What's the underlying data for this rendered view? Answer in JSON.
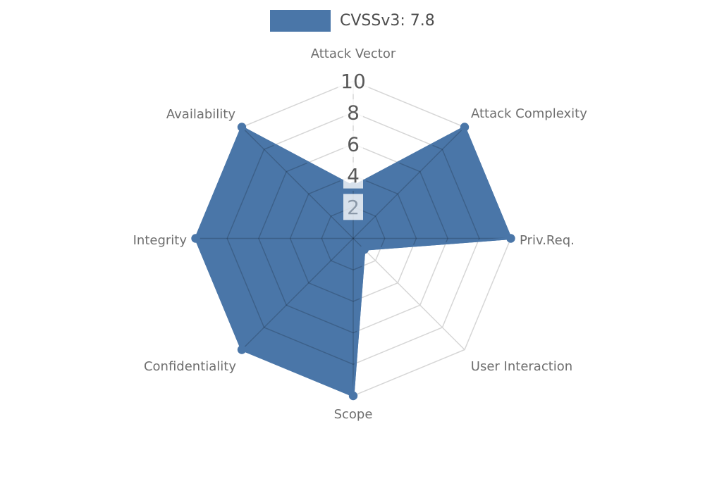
{
  "legend": {
    "label": "CVSSv3: 7.8",
    "swatch_color": "#4A76A8"
  },
  "chart_data": {
    "type": "radar",
    "title": "",
    "categories": [
      "Attack Vector",
      "Attack Complexity",
      "Priv.Req.",
      "User Interaction",
      "Scope",
      "Confidentiality",
      "Integrity",
      "Availability"
    ],
    "series": [
      {
        "name": "CVSSv3: 7.8",
        "values": [
          3.3,
          10,
          10,
          1,
          10,
          10,
          10,
          10
        ],
        "color": "#4A76A8"
      }
    ],
    "axis": {
      "min": 0,
      "max": 10,
      "ticks": [
        2,
        4,
        6,
        8,
        10
      ],
      "tick_labels": [
        "2",
        "4",
        "6",
        "8",
        "10"
      ]
    },
    "start_angle_deg": 90,
    "direction": "clockwise",
    "grid": true,
    "legend_position": "top-center",
    "colors": {
      "fill": "#4A76A8",
      "stroke": "#4A76A8",
      "grid_outside": "#d6d6d6",
      "grid_over_fill": "rgba(0,0,0,0.18)",
      "category_label": "#6e6e6e",
      "tick_label": "#595959",
      "tick_label_over_fill": "#8a98a8",
      "tick_box": "rgba(255,255,255,0.78)",
      "legend_text": "#4d4d4d"
    }
  }
}
